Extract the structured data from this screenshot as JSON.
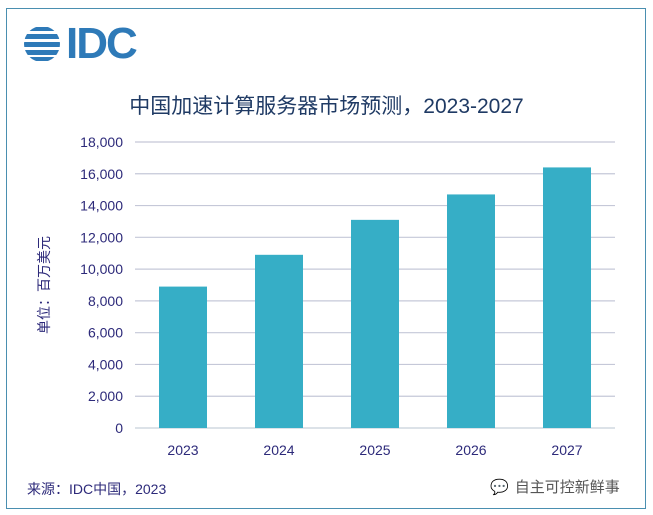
{
  "logo_text": "IDC",
  "chart_data": {
    "type": "bar",
    "title": "中国加速计算服务器市场预测，2023-2027",
    "xlabel": "",
    "ylabel": "单位：百万美元",
    "categories": [
      "2023",
      "2024",
      "2025",
      "2026",
      "2027"
    ],
    "values": [
      8900,
      10900,
      13100,
      14700,
      16400
    ],
    "ylim": [
      0,
      18000
    ],
    "yticks": [
      0,
      2000,
      4000,
      6000,
      8000,
      10000,
      12000,
      14000,
      16000,
      18000
    ],
    "ytick_labels": [
      "0",
      "2,000",
      "4,000",
      "6,000",
      "8,000",
      "10,000",
      "12,000",
      "14,000",
      "16,000",
      "18,000"
    ],
    "grid": true,
    "bar_color": "#36aec6"
  },
  "source": "来源：IDC中国，2023",
  "watermark": "自主可控新鲜事"
}
